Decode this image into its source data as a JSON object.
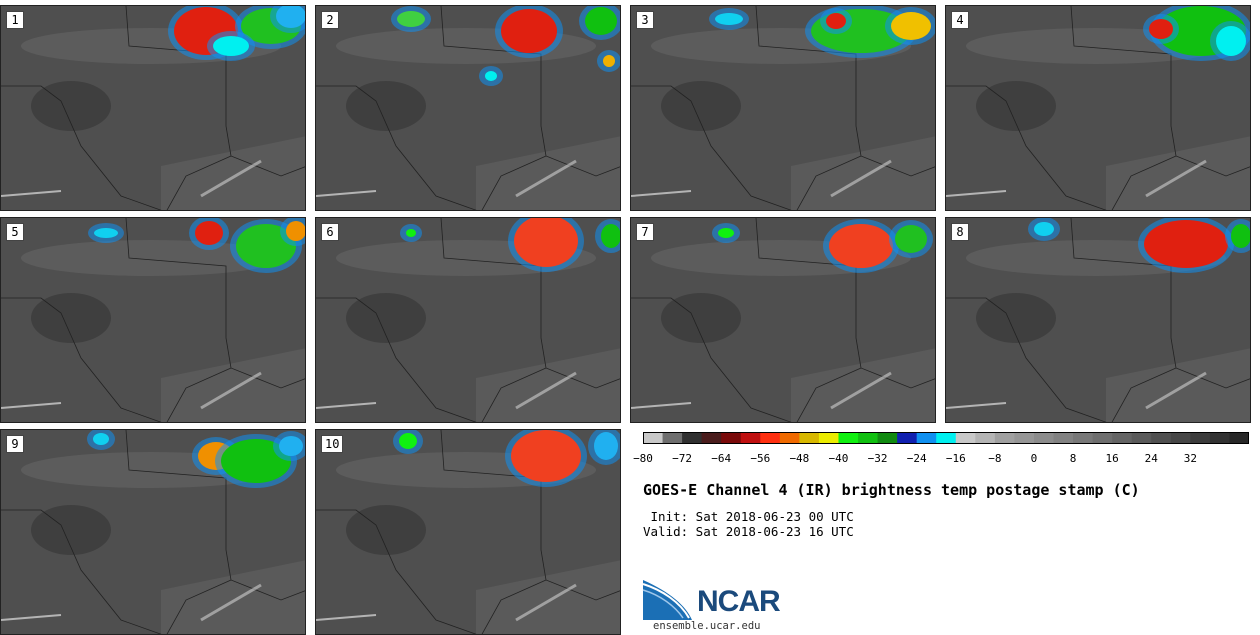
{
  "panels": [
    {
      "label": "1"
    },
    {
      "label": "2"
    },
    {
      "label": "3"
    },
    {
      "label": "4"
    },
    {
      "label": "5"
    },
    {
      "label": "6"
    },
    {
      "label": "7"
    },
    {
      "label": "8"
    },
    {
      "label": "9"
    },
    {
      "label": "10"
    }
  ],
  "colorbar": {
    "colors": [
      "#c8c8c8",
      "#6e6e6e",
      "#303030",
      "#4a1c1c",
      "#7a0a0a",
      "#c01010",
      "#ff3010",
      "#f06a00",
      "#d8b800",
      "#ecec00",
      "#10f010",
      "#10c010",
      "#108a10",
      "#1020b0",
      "#1090f0",
      "#00f0f0",
      "#c8c8c8",
      "#b4b4b4",
      "#a0a0a0",
      "#969696",
      "#8c8c8c",
      "#828282",
      "#787878",
      "#6e6e6e",
      "#646464",
      "#5a5a5a",
      "#505050",
      "#464646",
      "#3c3c3c",
      "#323232",
      "#282828"
    ],
    "ticks": [
      "−80",
      "−72",
      "−64",
      "−56",
      "−48",
      "−40",
      "−32",
      "−24",
      "−16",
      "−8",
      "0",
      "8",
      "16",
      "24",
      "32"
    ]
  },
  "title": "GOES-E Channel 4 (IR) brightness temp postage stamp (C)",
  "init": " Init: Sat 2018-06-23 00 UTC",
  "valid": "Valid: Sat 2018-06-23 16 UTC",
  "logo_text": "NCAR",
  "website": "ensemble.ucar.edu"
}
